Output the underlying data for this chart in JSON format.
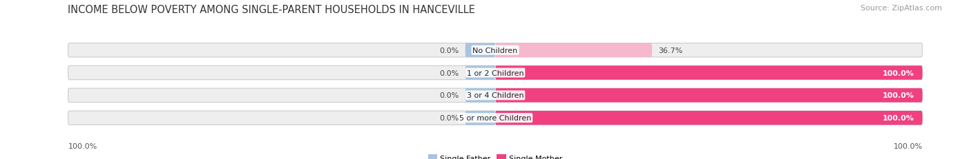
{
  "title": "INCOME BELOW POVERTY AMONG SINGLE-PARENT HOUSEHOLDS IN HANCEVILLE",
  "source": "Source: ZipAtlas.com",
  "categories": [
    "No Children",
    "1 or 2 Children",
    "3 or 4 Children",
    "5 or more Children"
  ],
  "single_father": [
    0.0,
    0.0,
    0.0,
    0.0
  ],
  "single_mother": [
    36.7,
    100.0,
    100.0,
    100.0
  ],
  "father_color": "#a8c4e0",
  "mother_color_light": "#f5b8cc",
  "mother_color_dark": "#f04080",
  "bar_bg_color": "#eeeeee",
  "bar_height": 0.62,
  "father_stub": 7.0,
  "father_label": "Single Father",
  "mother_label": "Single Mother",
  "title_fontsize": 10.5,
  "source_fontsize": 8,
  "label_fontsize": 8,
  "tick_fontsize": 8,
  "bg_color": "#ffffff",
  "bar_edge_color": "#cccccc",
  "rounding_size": 0.28
}
